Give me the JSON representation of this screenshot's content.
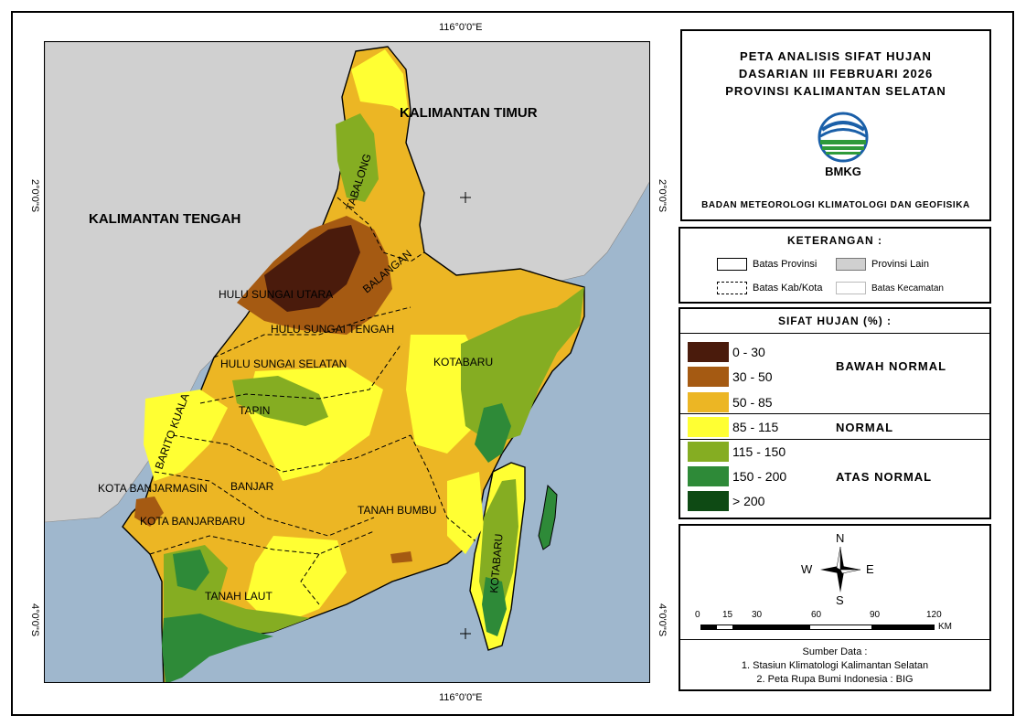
{
  "map": {
    "coords": {
      "top_lon": "116°0'0\"E",
      "bottom_lon": "116°0'0\"E",
      "left_lat_2": "2°0'0\"S",
      "left_lat_4": "4°0'0\"S",
      "right_lat_2": "2°0'0\"S",
      "right_lat_4": "4°0'0\"S"
    },
    "neighbors": {
      "kaltim": "KALIMANTAN TIMUR",
      "kalteng": "KALIMANTAN TENGAH"
    },
    "regions": {
      "tabalong": "TABALONG",
      "balangan": "BALANGAN",
      "hsu": "HULU SUNGAI UTARA",
      "hst": "HULU SUNGAI TENGAH",
      "hss": "HULU SUNGAI SELATAN",
      "tapin": "TAPIN",
      "barito_kuala": "BARITO KUALA",
      "kotabaru_north": "KOTABARU",
      "kotabaru_island": "KOTABARU",
      "kota_banjarmasin": "KOTA BANJARMASIN",
      "kota_banjarbaru": "KOTA BANJARBARU",
      "banjar": "BANJAR",
      "tanah_bumbu": "TANAH BUMBU",
      "tanah_laut": "TANAH LAUT"
    },
    "colors": {
      "sea": "#9fb7cd",
      "other_province": "#d0d0d0",
      "c0_30": "#4a1b0c",
      "c30_50": "#a55a12",
      "c50_85": "#ecb624",
      "c85_115": "#ffff33",
      "c115_150": "#85ad22",
      "c150_200": "#2e8a38",
      "c200": "#0e4a14"
    }
  },
  "title": {
    "line1": "PETA ANALISIS SIFAT HUJAN",
    "line2": "DASARIAN III FEBRUARI 2026",
    "line3": "PROVINSI KALIMANTAN SELATAN",
    "logo_text": "BMKG",
    "agency": "BADAN METEOROLOGI KLIMATOLOGI DAN GEOFISIKA"
  },
  "keterangan": {
    "heading": "KETERANGAN :",
    "batas_provinsi": "Batas Provinsi",
    "provinsi_lain": "Provinsi Lain",
    "batas_kab": "Batas Kab/Kota",
    "batas_kec": "Batas Kecamatan"
  },
  "legend": {
    "heading": "SIFAT HUJAN (%) :",
    "classes": [
      {
        "label": "0 - 30",
        "color": "#4a1b0c"
      },
      {
        "label": "30 - 50",
        "color": "#a55a12"
      },
      {
        "label": "50 - 85",
        "color": "#ecb624"
      },
      {
        "label": "85 - 115",
        "color": "#ffff33"
      },
      {
        "label": "115 - 150",
        "color": "#85ad22"
      },
      {
        "label": "150 - 200",
        "color": "#2e8a38"
      },
      {
        "label": "> 200",
        "color": "#0e4a14"
      }
    ],
    "categories": {
      "below": "BAWAH NORMAL",
      "normal": "NORMAL",
      "above": "ATAS NORMAL"
    }
  },
  "compass": {
    "n": "N",
    "s": "S",
    "e": "E",
    "w": "W"
  },
  "scale": {
    "ticks": [
      "0",
      "15",
      "30",
      "60",
      "90",
      "120"
    ],
    "unit": "KM"
  },
  "source": {
    "heading": "Sumber Data :",
    "line1": "1. Stasiun Klimatologi Kalimantan Selatan",
    "line2": "2. Peta Rupa Bumi Indonesia : BIG"
  }
}
